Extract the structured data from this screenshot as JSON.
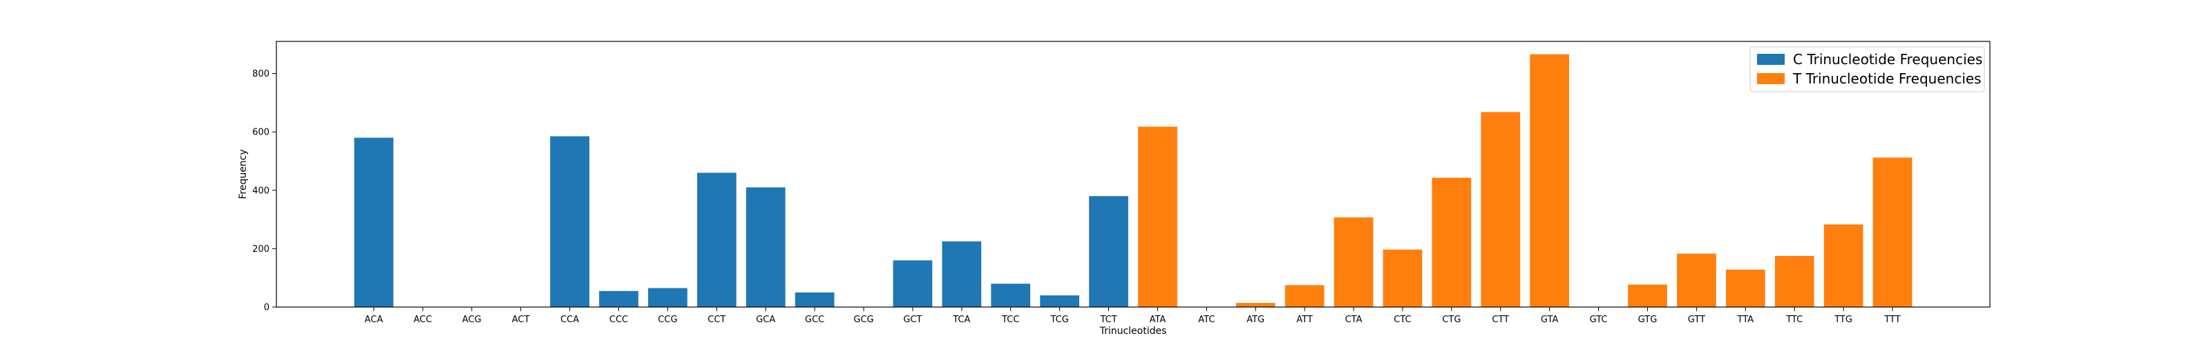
{
  "chart_data": {
    "type": "bar",
    "xlabel": "Trinucleotides",
    "ylabel": "Frequency",
    "ylim": [
      0,
      910
    ],
    "yticks": [
      0,
      200,
      400,
      600,
      800
    ],
    "grid": false,
    "legend_placement": "top-right",
    "categories": [
      "ACA",
      "ACC",
      "ACG",
      "ACT",
      "CCA",
      "CCC",
      "CCG",
      "CCT",
      "GCA",
      "GCC",
      "GCG",
      "GCT",
      "TCA",
      "TCC",
      "TCG",
      "TCT",
      "ATA",
      "ATC",
      "ATG",
      "ATT",
      "CTA",
      "CTC",
      "CTG",
      "CTT",
      "GTA",
      "GTC",
      "GTG",
      "GTT",
      "TTA",
      "TTC",
      "TTG",
      "TTT"
    ],
    "series": [
      {
        "name": "C Trinucleotide Frequencies",
        "color": "#1f77b4",
        "values": [
          580,
          0,
          0,
          0,
          585,
          55,
          65,
          460,
          410,
          50,
          0,
          160,
          225,
          80,
          40,
          380,
          null,
          null,
          null,
          null,
          null,
          null,
          null,
          null,
          null,
          null,
          null,
          null,
          null,
          null,
          null,
          null
        ]
      },
      {
        "name": "T Trinucleotide Frequencies",
        "color": "#ff7f0e",
        "values": [
          null,
          null,
          null,
          null,
          null,
          null,
          null,
          null,
          null,
          null,
          null,
          null,
          null,
          null,
          null,
          null,
          618,
          0,
          14,
          75,
          307,
          197,
          443,
          668,
          866,
          0,
          77,
          183,
          128,
          175,
          283,
          512
        ]
      }
    ]
  }
}
